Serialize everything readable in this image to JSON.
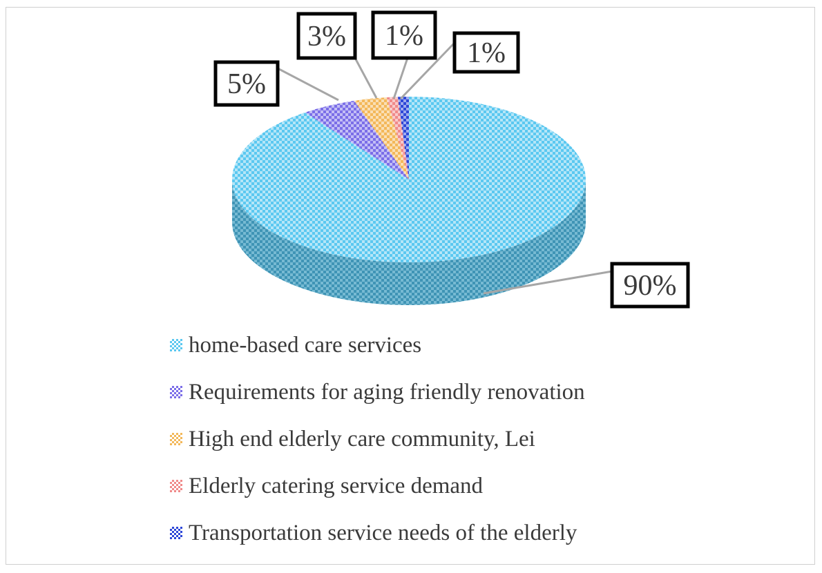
{
  "chart_data": {
    "type": "pie",
    "variant": "3d",
    "categories": [
      "home-based care services",
      "Requirements for aging friendly renovation",
      "High end elderly care community, Lei",
      "Elderly catering service demand",
      "Transportation service needs of the elderly"
    ],
    "values": [
      90,
      5,
      3,
      1,
      1
    ],
    "data_labels": [
      "90%",
      "5%",
      "3%",
      "1%",
      "1%"
    ],
    "colors": [
      "#5bc8f0",
      "#7b6ee8",
      "#f3b85a",
      "#f08a8a",
      "#2d47d8"
    ],
    "legend_position": "bottom"
  }
}
